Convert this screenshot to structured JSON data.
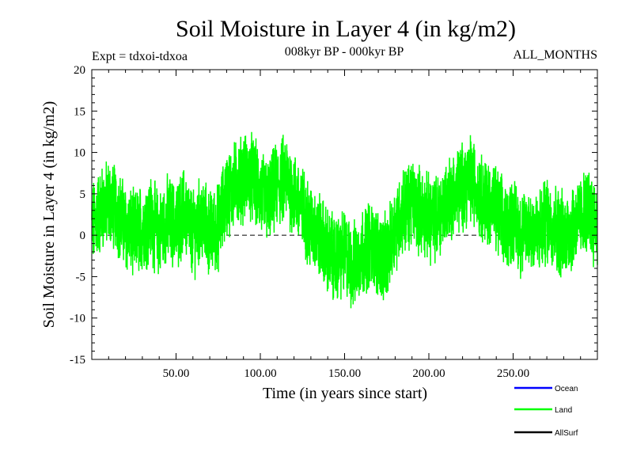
{
  "chart_data": {
    "type": "line",
    "title": "Soil Moisture in Layer 4 (in kg/m2)",
    "subtitle_left": "Expt = tdxoi-tdxoa",
    "subtitle_center": "008kyr BP - 000kyr BP",
    "subtitle_right": "ALL_MONTHS",
    "xlabel": "Time (in years since start)",
    "ylabel": "Soil Moisture in Layer 4 (in kg/m2)",
    "xlim": [
      0,
      300
    ],
    "ylim": [
      -15,
      20
    ],
    "xticks": [
      50,
      100,
      150,
      200,
      250
    ],
    "xtick_labels": [
      "50.00",
      "100.00",
      "150.00",
      "200.00",
      "250.00"
    ],
    "yticks": [
      -15,
      -10,
      -5,
      0,
      5,
      10,
      15,
      20
    ],
    "ytick_labels": [
      "-15",
      "-10",
      "-5",
      "0",
      "5",
      "10",
      "15",
      "20"
    ],
    "zero_line": "dashed",
    "legend_position": "bottom-right",
    "series": [
      {
        "name": "Ocean",
        "color": "#0000ff",
        "values": []
      },
      {
        "name": "Land",
        "color": "#00ff00",
        "monthly": true,
        "envelope_points": [
          [
            0,
            1
          ],
          [
            5,
            3
          ],
          [
            10,
            4
          ],
          [
            15,
            3
          ],
          [
            20,
            1
          ],
          [
            25,
            0
          ],
          [
            30,
            1
          ],
          [
            35,
            2
          ],
          [
            40,
            0
          ],
          [
            45,
            2
          ],
          [
            50,
            1
          ],
          [
            55,
            3
          ],
          [
            60,
            0
          ],
          [
            65,
            2
          ],
          [
            70,
            0
          ],
          [
            75,
            1
          ],
          [
            80,
            5
          ],
          [
            85,
            6
          ],
          [
            90,
            7
          ],
          [
            95,
            7
          ],
          [
            100,
            5
          ],
          [
            105,
            4
          ],
          [
            110,
            6
          ],
          [
            115,
            7
          ],
          [
            120,
            5
          ],
          [
            125,
            3
          ],
          [
            130,
            1
          ],
          [
            135,
            0
          ],
          [
            140,
            -2
          ],
          [
            145,
            -3
          ],
          [
            150,
            -2
          ],
          [
            155,
            -4
          ],
          [
            160,
            -2
          ],
          [
            165,
            -1
          ],
          [
            170,
            -2
          ],
          [
            175,
            -3
          ],
          [
            180,
            1
          ],
          [
            185,
            3
          ],
          [
            190,
            4
          ],
          [
            195,
            3
          ],
          [
            200,
            2
          ],
          [
            205,
            2
          ],
          [
            210,
            4
          ],
          [
            215,
            5
          ],
          [
            220,
            6
          ],
          [
            225,
            7
          ],
          [
            230,
            5
          ],
          [
            235,
            4
          ],
          [
            240,
            3
          ],
          [
            245,
            1
          ],
          [
            250,
            2
          ],
          [
            255,
            0
          ],
          [
            260,
            1
          ],
          [
            265,
            0
          ],
          [
            270,
            2
          ],
          [
            275,
            1
          ],
          [
            280,
            0
          ],
          [
            285,
            1
          ],
          [
            290,
            2
          ],
          [
            295,
            3
          ],
          [
            300,
            1
          ]
        ],
        "amplitude": 4.5
      },
      {
        "name": "AllSurf",
        "color": "#000000",
        "values": []
      }
    ]
  }
}
